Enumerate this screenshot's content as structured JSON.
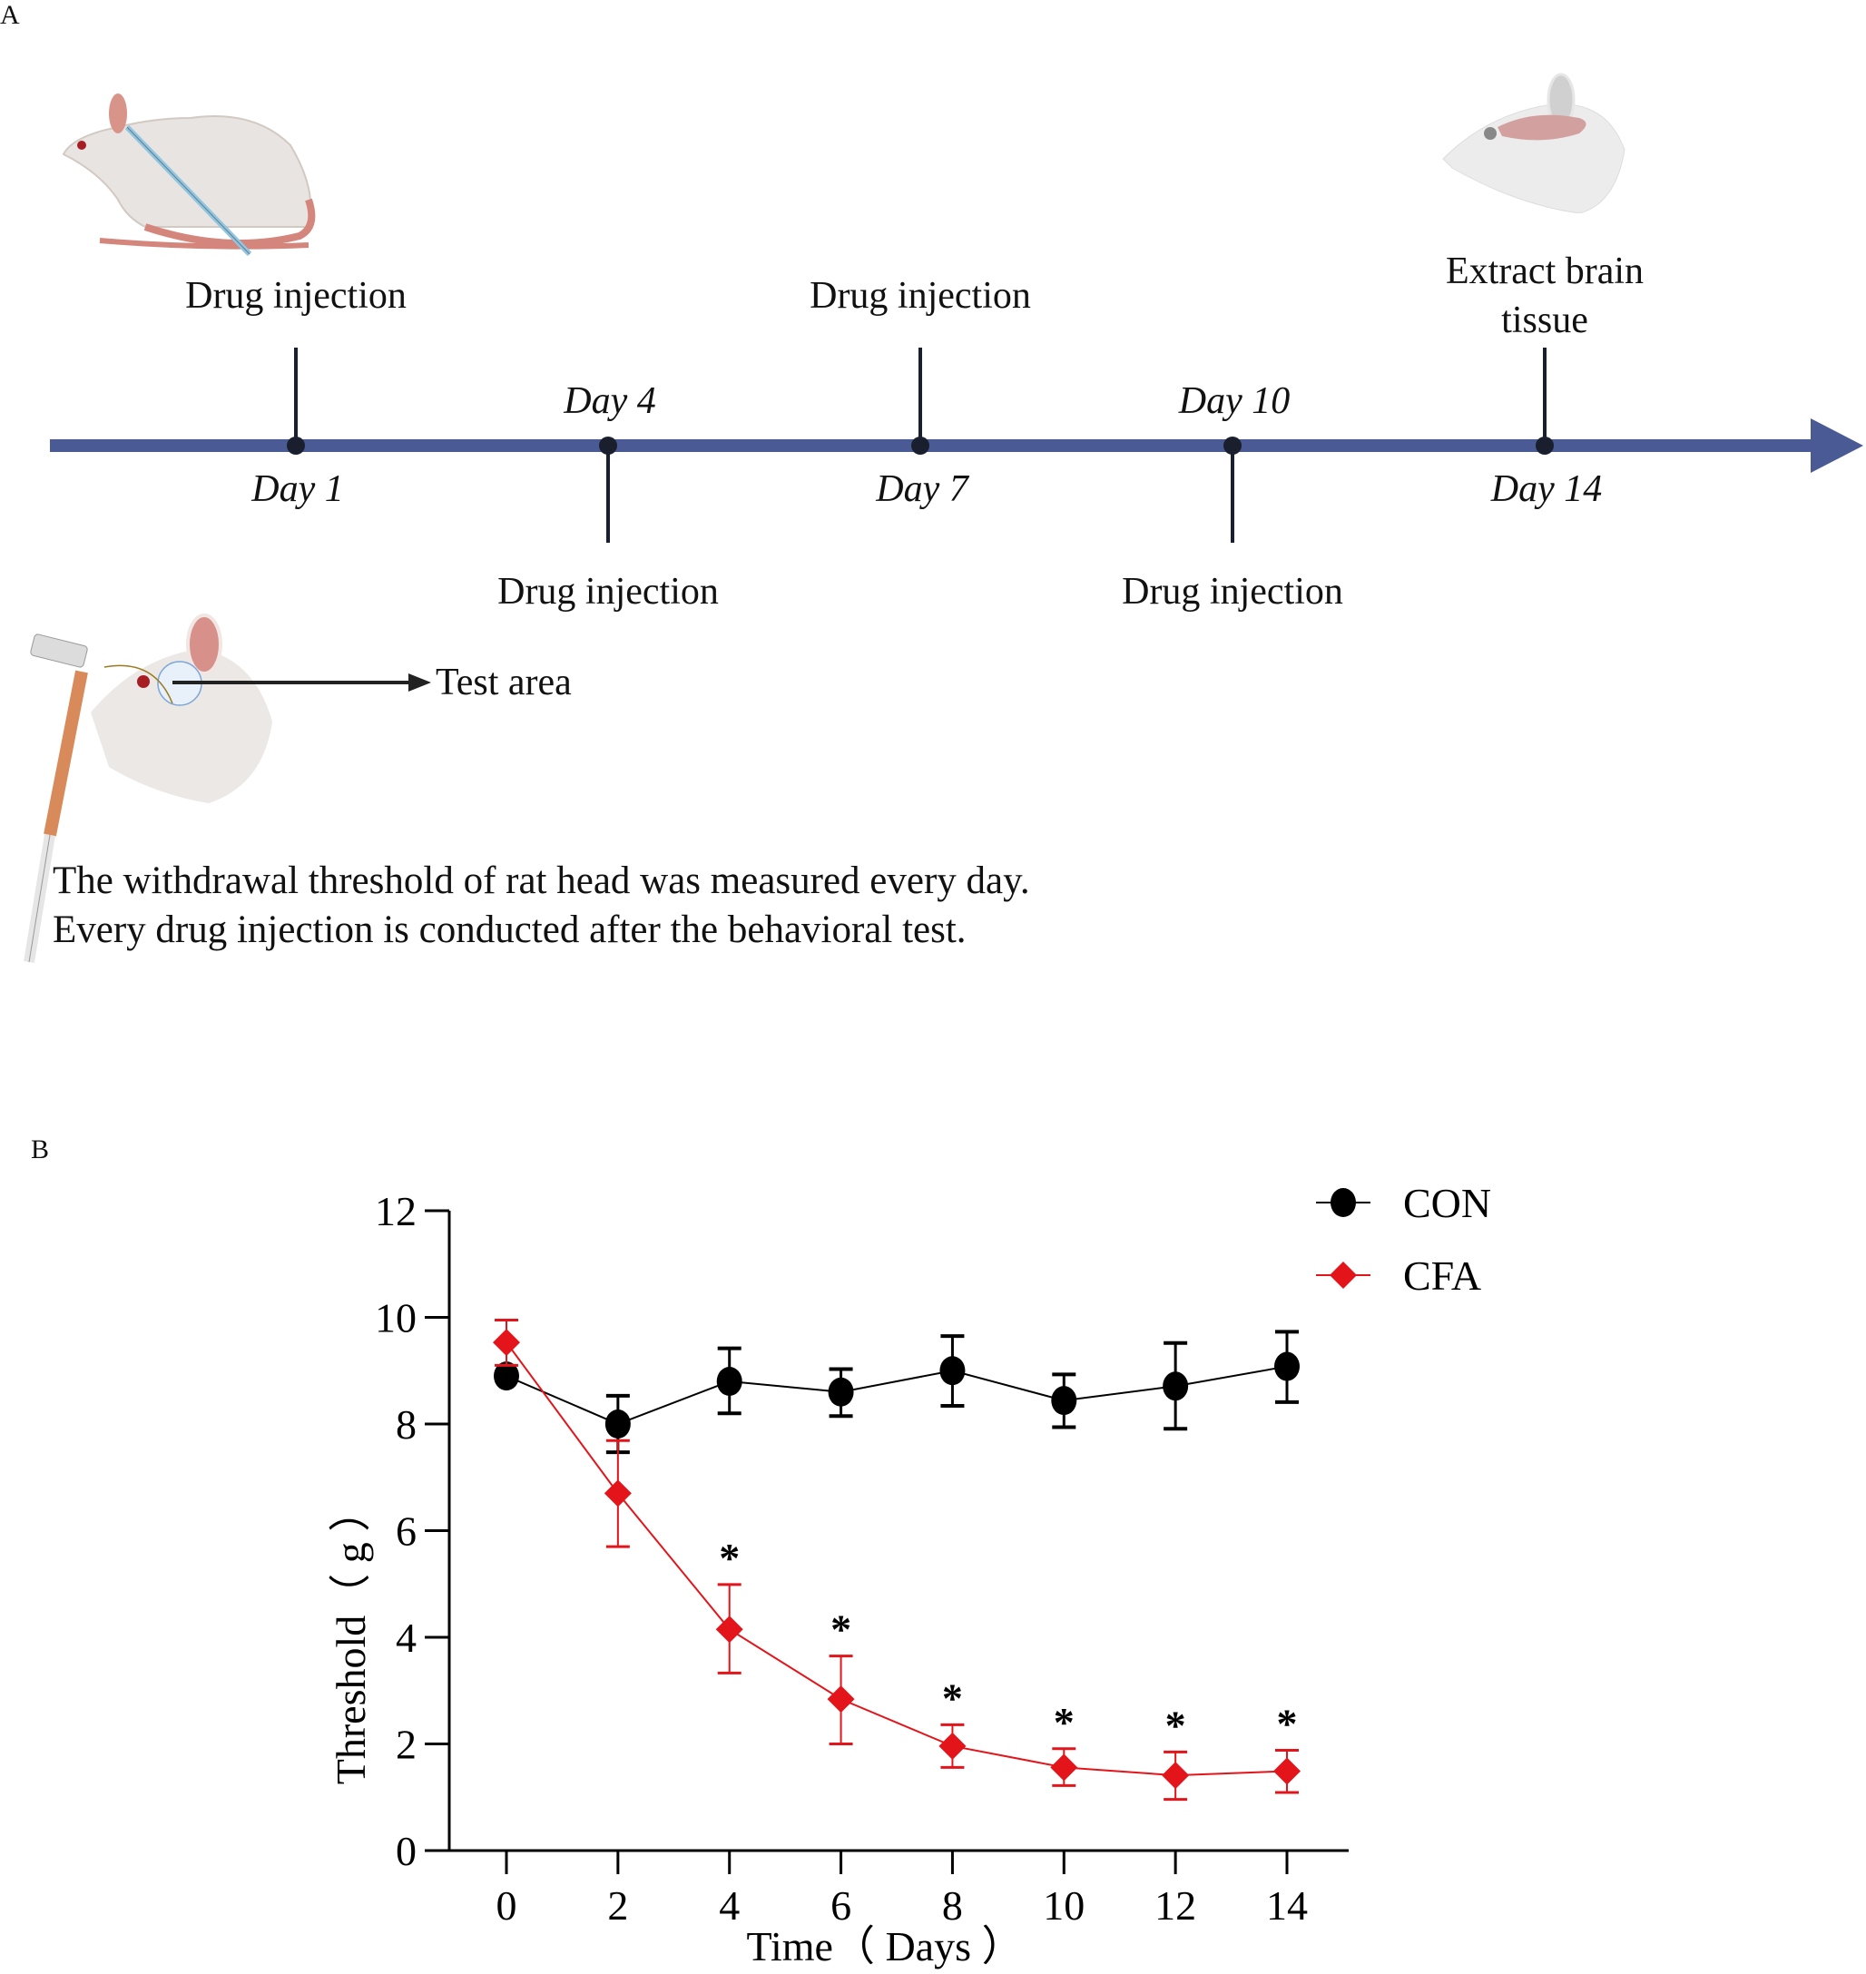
{
  "panels": {
    "a_label": "A",
    "b_label": "B"
  },
  "timeline": {
    "axis_color": "#4a5a94",
    "marker_color": "#1a1f2e",
    "events": [
      {
        "day": "Day 1",
        "event": "Drug injection",
        "event_side": "top",
        "day_side": "bottom"
      },
      {
        "day": "Day 4",
        "event": "Drug injection",
        "event_side": "bottom",
        "day_side": "top"
      },
      {
        "day": "Day 7",
        "event": "Drug injection",
        "event_side": "top",
        "day_side": "bottom"
      },
      {
        "day": "Day 10",
        "event": "Drug injection",
        "event_side": "bottom",
        "day_side": "top"
      },
      {
        "day": "Day 14",
        "event_line1": "Extract brain",
        "event_line2": "tissue",
        "event_side": "top",
        "day_side": "bottom"
      }
    ],
    "test_area_label": "Test area",
    "notes": [
      "The withdrawal threshold of rat head was measured every day.",
      "Every drug injection is conducted after the behavioral test."
    ],
    "illustrations": [
      "rat-injection-icon",
      "rat-brain-icon",
      "von-frey-rat-icon"
    ]
  },
  "chart_data": {
    "type": "line",
    "title": "",
    "xlabel": "Time（ Days  ）",
    "ylabel": "Threshold（ g ）",
    "x": [
      0,
      2,
      4,
      6,
      8,
      10,
      12,
      14
    ],
    "x_ticks": [
      "0",
      "2",
      "4",
      "6",
      "8",
      "10",
      "12",
      "14"
    ],
    "y_ticks": [
      "0",
      "2",
      "4",
      "6",
      "8",
      "10",
      "12"
    ],
    "xlim": [
      -1.2,
      16.2
    ],
    "ylim": [
      0,
      12
    ],
    "grid": false,
    "legend_position": "top-right",
    "series": [
      {
        "name": "CON",
        "color": "#000000",
        "marker": "circle",
        "values": [
          8.9,
          8.0,
          8.8,
          8.6,
          9.0,
          8.44,
          8.71,
          9.08
        ],
        "err_low": [
          8.9,
          7.47,
          8.2,
          8.15,
          8.34,
          7.94,
          7.91,
          8.41
        ],
        "err_high": [
          8.9,
          8.53,
          9.42,
          9.03,
          9.65,
          8.93,
          9.52,
          9.73
        ]
      },
      {
        "name": "CFA",
        "color": "#e3151a",
        "marker": "diamond",
        "values": [
          9.53,
          6.7,
          4.15,
          2.84,
          1.96,
          1.56,
          1.41,
          1.49
        ],
        "err_low": [
          9.1,
          5.7,
          3.33,
          2.0,
          1.56,
          1.22,
          0.96,
          1.09
        ],
        "err_high": [
          9.95,
          7.69,
          4.99,
          3.65,
          2.36,
          1.91,
          1.85,
          1.88
        ]
      }
    ],
    "annotations": [
      {
        "x": 4,
        "text": "*"
      },
      {
        "x": 6,
        "text": "*"
      },
      {
        "x": 8,
        "text": "*"
      },
      {
        "x": 10,
        "text": "*"
      },
      {
        "x": 12,
        "text": "*"
      },
      {
        "x": 14,
        "text": "*"
      }
    ]
  }
}
